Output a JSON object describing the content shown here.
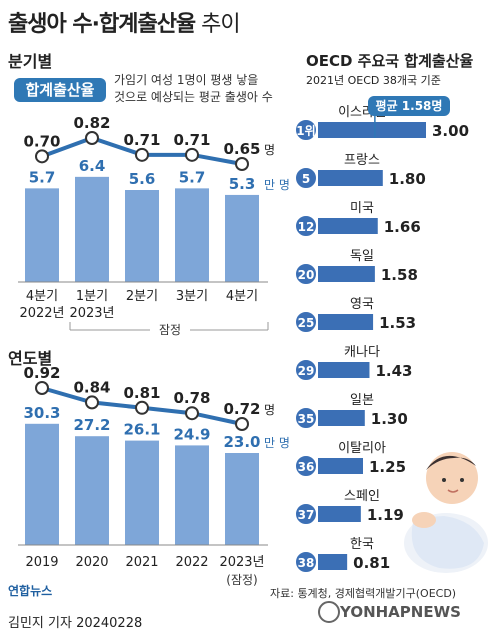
{
  "title": {
    "main": "출생아 수·합계출산율",
    "sub": " 추이"
  },
  "quarterly": {
    "heading": "분기별",
    "badge": "합계출산율",
    "note_line1": "가임기 여성 1명이 평생 낳을",
    "note_line2": "것으로 예상되는 평균 출생아 수",
    "provisional": "잠정"
  },
  "annual": {
    "heading": "연도별"
  },
  "oecd": {
    "title": "OECD 주요국 합계출산율",
    "subtitle": "2021년 OECD 38개국 기준",
    "average_badge_prefix": "평균 ",
    "average_value": "1.58명"
  },
  "footer": {
    "source": "자료: 통계청, 경제협력개발기구(OECD)",
    "logo": "연합뉴스",
    "byline": "김민지 기자  20240228",
    "watermark": "YONHAPNEWS"
  },
  "colors": {
    "bar": "#7ea6d8",
    "accent": "#2f78b5",
    "line": "#2f6fb0",
    "oecd_bar": "#3b6fb5"
  },
  "chart_data": [
    {
      "type": "bar",
      "title": "분기별",
      "categories": [
        "4분기 2022년",
        "1분기 2023년",
        "2분기",
        "3분기",
        "4분기"
      ],
      "series": [
        {
          "name": "출생아 수",
          "unit": "만 명",
          "values": [
            5.7,
            6.4,
            5.6,
            5.7,
            5.3
          ]
        }
      ],
      "ylim": [
        0,
        7
      ]
    },
    {
      "type": "line",
      "title": "분기별",
      "categories": [
        "4분기 2022년",
        "1분기 2023년",
        "2분기",
        "3분기",
        "4분기"
      ],
      "series": [
        {
          "name": "합계출산율",
          "unit": "명",
          "values": [
            0.7,
            0.82,
            0.71,
            0.71,
            0.65
          ]
        }
      ]
    },
    {
      "type": "bar",
      "title": "연도별",
      "categories": [
        "2019",
        "2020",
        "2021",
        "2022",
        "2023년"
      ],
      "series": [
        {
          "name": "출생아 수",
          "unit": "만 명",
          "values": [
            30.3,
            27.2,
            26.1,
            24.9,
            23.0
          ]
        }
      ],
      "ylim": [
        0,
        35
      ]
    },
    {
      "type": "line",
      "title": "연도별",
      "categories": [
        "2019",
        "2020",
        "2021",
        "2022",
        "2023년"
      ],
      "series": [
        {
          "name": "합계출산율",
          "unit": "명",
          "values": [
            0.92,
            0.84,
            0.81,
            0.78,
            0.72
          ]
        }
      ]
    },
    {
      "type": "bar",
      "title": "OECD 주요국 합계출산율",
      "categories": [
        "이스라엘",
        "프랑스",
        "미국",
        "독일",
        "영국",
        "캐나다",
        "일본",
        "이탈리아",
        "스페인",
        "한국"
      ],
      "ranks": [
        "1위",
        "5",
        "12",
        "20",
        "25",
        "29",
        "35",
        "36",
        "37",
        "38"
      ],
      "series": [
        {
          "name": "합계출산율",
          "values": [
            3.0,
            1.8,
            1.66,
            1.58,
            1.53,
            1.43,
            1.3,
            1.25,
            1.19,
            0.81
          ]
        }
      ],
      "average": 1.58,
      "xlim": [
        0,
        3.0
      ]
    }
  ]
}
